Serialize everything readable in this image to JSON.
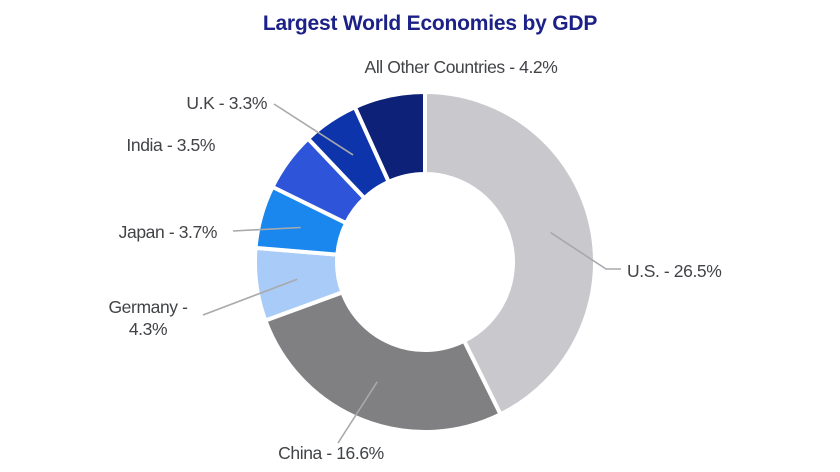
{
  "title": "Largest World Economies by GDP",
  "colors": {
    "background": "#ffffff",
    "title_text": "#1c2187",
    "label_text": "#414347",
    "leader_line": "#a9a9ac",
    "donut_hole": "#ffffff"
  },
  "chart_data": {
    "type": "pie",
    "subtype": "donut",
    "title": "Largest World Economies by GDP",
    "start_angle": "top",
    "direction": "clockwise",
    "legend": "none (direct callout labels)",
    "value_unit": "% of world GDP",
    "segments": [
      {
        "label": "U.S.",
        "value": 26.5,
        "display_lines": [
          "U.S. - 26.5%"
        ],
        "color": "#c8c8cd"
      },
      {
        "label": "China",
        "value": 16.6,
        "display_lines": [
          "China - 16.6%"
        ],
        "color": "#808083"
      },
      {
        "label": "Germany",
        "value": 4.3,
        "display_lines": [
          "Germany -",
          "4.3%"
        ],
        "color": "#a9cbf8"
      },
      {
        "label": "Japan",
        "value": 3.7,
        "display_lines": [
          "Japan - 3.7%"
        ],
        "color": "#1987ee"
      },
      {
        "label": "India",
        "value": 3.5,
        "display_lines": [
          "India - 3.5%"
        ],
        "color": "#2e54da"
      },
      {
        "label": "U.K",
        "value": 3.3,
        "display_lines": [
          "U.K - 3.3%"
        ],
        "color": "#0d34ab"
      },
      {
        "label": "All Other Countries",
        "value": 4.2,
        "display_lines": [
          "All Other Countries - 4.2%"
        ],
        "color": "#0c2177"
      }
    ]
  }
}
